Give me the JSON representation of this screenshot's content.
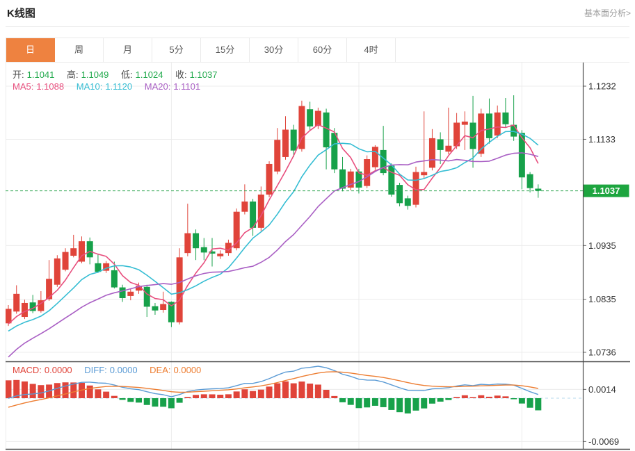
{
  "header": {
    "title": "K线图",
    "link": "基本面分析>"
  },
  "tabs": {
    "items": [
      {
        "label": "日",
        "active": true
      },
      {
        "label": "周",
        "active": false
      },
      {
        "label": "月",
        "active": false
      },
      {
        "label": "5分",
        "active": false
      },
      {
        "label": "15分",
        "active": false
      },
      {
        "label": "30分",
        "active": false
      },
      {
        "label": "60分",
        "active": false
      },
      {
        "label": "4时",
        "active": false
      }
    ]
  },
  "legend": {
    "ohlc": [
      {
        "label": "开:",
        "value": "1.1041"
      },
      {
        "label": "高:",
        "value": "1.1049"
      },
      {
        "label": "低:",
        "value": "1.1024"
      },
      {
        "label": "收:",
        "value": "1.1037"
      }
    ],
    "ma": [
      {
        "label": "MA5:",
        "value": "1.1088"
      },
      {
        "label": "MA10:",
        "value": "1.1120"
      },
      {
        "label": "MA20:",
        "value": "1.1101"
      }
    ],
    "macd": [
      {
        "label": "MACD:",
        "value": "0.0000"
      },
      {
        "label": "DIFF:",
        "value": "0.0000"
      },
      {
        "label": "DEA:",
        "value": "0.0000"
      }
    ]
  },
  "colors": {
    "up_candle": "#e0443a",
    "down_candle": "#17a14a",
    "ma5": "#e84f7e",
    "ma10": "#35bdd3",
    "ma20": "#a95fc4",
    "diff_line": "#5b9bd5",
    "dea_line": "#ed7d31",
    "current_price_line": "#2ca44e",
    "current_price_box": "#1da53f",
    "active_tab": "#ee8240",
    "grid": "#ececec",
    "frame": "#4a4a4a",
    "axis_text": "#333333",
    "macd_zero_dash": "#b5d9ec"
  },
  "chart_data": {
    "type": "candlestick",
    "title": "K线图",
    "y_axis_labels": [
      "1.1232",
      "1.1133",
      "1.0935",
      "1.0835",
      "1.0736"
    ],
    "current_price": 1.1037,
    "current_price_label": "1.1037",
    "macd_axis_labels": [
      "0.0014",
      "-0.0069"
    ],
    "ma_periods": [
      5,
      10,
      20
    ],
    "x_gridline_indices": [
      20,
      43,
      63
    ],
    "warmup_closes_estimated": [
      1.13,
      1.126,
      1.121,
      1.116,
      1.11,
      1.104,
      1.098,
      1.092,
      1.086,
      1.08,
      1.0745,
      1.0695,
      1.065,
      1.0612,
      1.058,
      1.0556,
      1.054,
      1.0528,
      1.0522,
      1.052,
      1.053,
      1.056,
      1.0595,
      1.063,
      1.0662,
      1.069,
      1.071,
      1.0722,
      1.0732,
      1.074,
      1.0746,
      1.0752,
      1.0758,
      1.0763,
      1.0768,
      1.0772,
      1.0776,
      1.078,
      1.0784,
      1.0787
    ],
    "candles_ohlc_estimated": [
      [
        1.079,
        1.0824,
        1.0785,
        1.0817
      ],
      [
        1.0812,
        1.0861,
        1.0808,
        1.0845
      ],
      [
        1.0802,
        1.0834,
        1.0798,
        1.0828
      ],
      [
        1.0829,
        1.0843,
        1.0809,
        1.0813
      ],
      [
        1.0813,
        1.085,
        1.081,
        1.0833
      ],
      [
        1.0835,
        1.0908,
        1.0832,
        1.0873
      ],
      [
        1.0862,
        1.0917,
        1.0858,
        1.0911
      ],
      [
        1.089,
        1.093,
        1.0887,
        1.0923
      ],
      [
        1.0916,
        1.0955,
        1.0913,
        1.093
      ],
      [
        1.0905,
        1.0952,
        1.0902,
        1.0943
      ],
      [
        1.0943,
        1.095,
        1.09,
        1.0913
      ],
      [
        1.0902,
        1.0918,
        1.0884,
        1.0886
      ],
      [
        1.0888,
        1.0906,
        1.0884,
        1.0902
      ],
      [
        1.0889,
        1.0905,
        1.0855,
        1.0857
      ],
      [
        1.0857,
        1.0862,
        1.083,
        1.0837
      ],
      [
        1.0841,
        1.0855,
        1.0833,
        1.0849
      ],
      [
        1.0851,
        1.0866,
        1.0845,
        1.086
      ],
      [
        1.0858,
        1.0862,
        1.0802,
        1.0821
      ],
      [
        1.0822,
        1.0828,
        1.0806,
        1.0814
      ],
      [
        1.0815,
        1.0849,
        1.081,
        1.0826
      ],
      [
        1.083,
        1.0831,
        1.0783,
        1.0792
      ],
      [
        1.0792,
        1.093,
        1.0788,
        1.0913
      ],
      [
        1.0921,
        1.1013,
        1.0915,
        1.0958
      ],
      [
        1.0958,
        1.0965,
        1.0908,
        1.093
      ],
      [
        1.0932,
        1.0949,
        1.0908,
        1.0922
      ],
      [
        1.0924,
        1.0949,
        1.0896,
        1.092
      ],
      [
        1.0915,
        1.0926,
        1.091,
        1.092
      ],
      [
        1.0921,
        1.0946,
        1.0916,
        1.094
      ],
      [
        1.093,
        1.1004,
        1.0926,
        1.0998
      ],
      [
        1.0998,
        1.1049,
        1.0993,
        1.1017
      ],
      [
        1.1017,
        1.1022,
        1.0953,
        1.0968
      ],
      [
        1.0968,
        1.1045,
        1.0962,
        1.103
      ],
      [
        1.103,
        1.1092,
        1.1025,
        1.1087
      ],
      [
        1.1073,
        1.1154,
        1.1068,
        1.1132
      ],
      [
        1.11,
        1.1176,
        1.1095,
        1.1151
      ],
      [
        1.1151,
        1.116,
        1.11,
        1.1112
      ],
      [
        1.1115,
        1.1205,
        1.111,
        1.1195
      ],
      [
        1.1189,
        1.1203,
        1.115,
        1.1157
      ],
      [
        1.1158,
        1.1192,
        1.1152,
        1.1186
      ],
      [
        1.1183,
        1.119,
        1.1077,
        1.1118
      ],
      [
        1.1145,
        1.1154,
        1.107,
        1.1077
      ],
      [
        1.1077,
        1.11,
        1.1036,
        1.1041
      ],
      [
        1.1043,
        1.1078,
        1.1038,
        1.1073
      ],
      [
        1.1073,
        1.1078,
        1.1032,
        1.1043
      ],
      [
        1.1046,
        1.1103,
        1.1042,
        1.1096
      ],
      [
        1.1081,
        1.1122,
        1.1076,
        1.1119
      ],
      [
        1.1113,
        1.1158,
        1.1066,
        1.107
      ],
      [
        1.1084,
        1.1088,
        1.1026,
        1.103
      ],
      [
        1.1048,
        1.1052,
        1.1008,
        1.1014
      ],
      [
        1.1023,
        1.1028,
        1.1002,
        1.1009
      ],
      [
        1.1011,
        1.1082,
        1.1006,
        1.1072
      ],
      [
        1.1066,
        1.1185,
        1.106,
        1.1072
      ],
      [
        1.108,
        1.1152,
        1.1075,
        1.1135
      ],
      [
        1.1133,
        1.1146,
        1.1087,
        1.1113
      ],
      [
        1.111,
        1.1192,
        1.1105,
        1.1121
      ],
      [
        1.112,
        1.1182,
        1.1115,
        1.1164
      ],
      [
        1.116,
        1.1185,
        1.1113,
        1.1166
      ],
      [
        1.1164,
        1.1214,
        1.108,
        1.1115
      ],
      [
        1.1106,
        1.119,
        1.11,
        1.1181
      ],
      [
        1.1181,
        1.1209,
        1.1125,
        1.1135
      ],
      [
        1.114,
        1.1196,
        1.1135,
        1.1183
      ],
      [
        1.1183,
        1.121,
        1.1155,
        1.1161
      ],
      [
        1.116,
        1.1215,
        1.113,
        1.1138
      ],
      [
        1.1145,
        1.115,
        1.104,
        1.1062
      ],
      [
        1.1068,
        1.1072,
        1.1034,
        1.1042
      ],
      [
        1.1041,
        1.1049,
        1.1024,
        1.1037
      ]
    ]
  }
}
